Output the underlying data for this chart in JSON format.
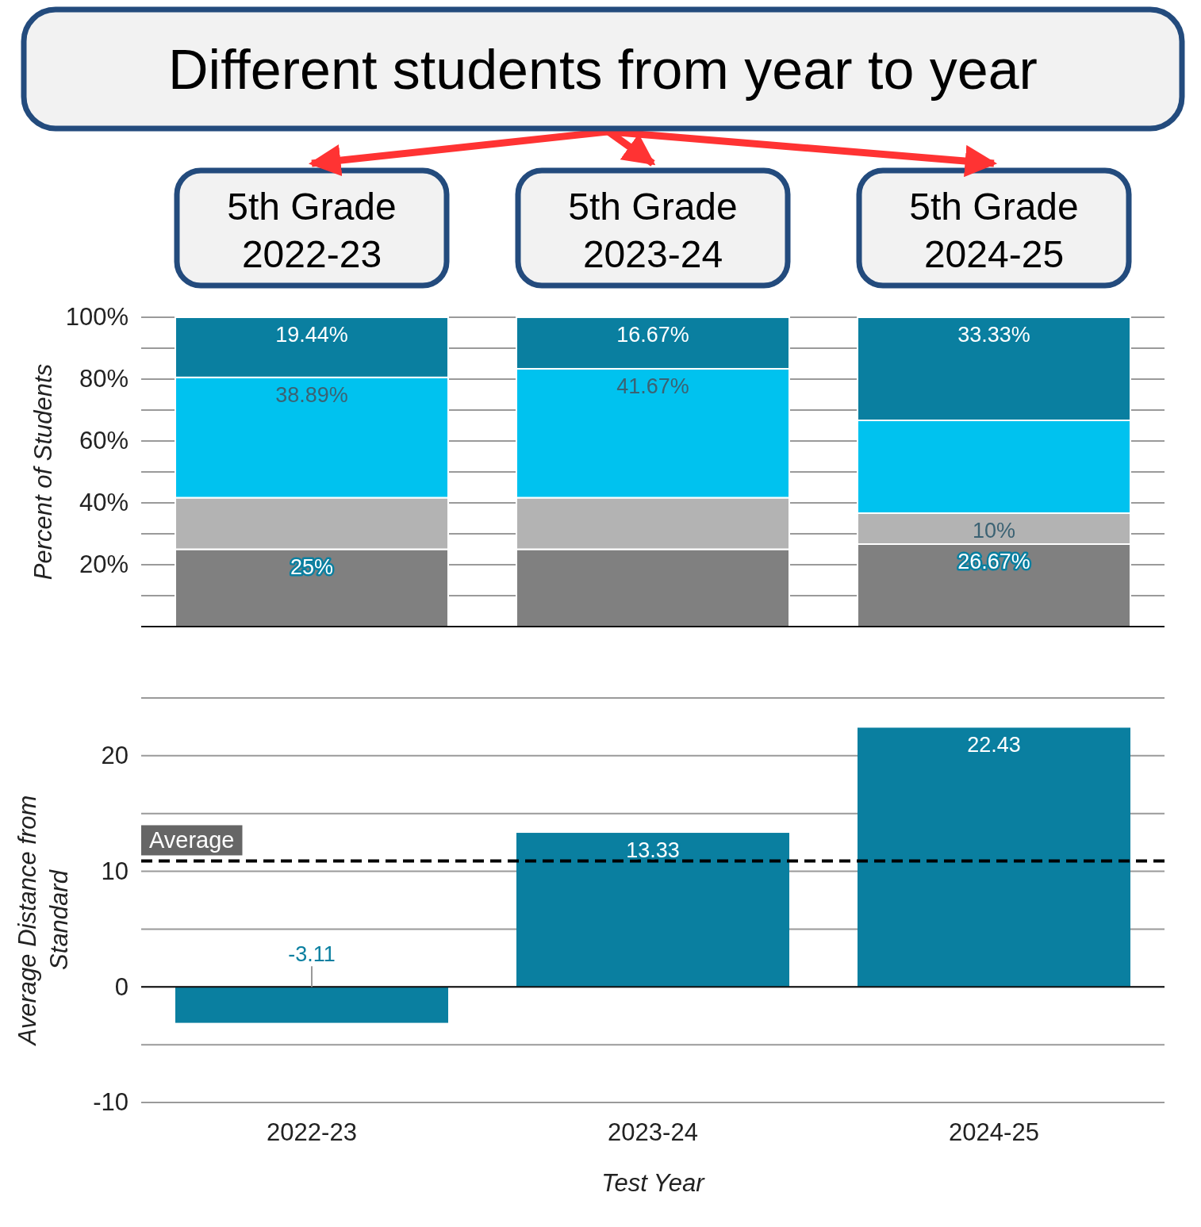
{
  "chart_data": [
    {
      "type": "bar",
      "stacked": true,
      "ylabel": "Percent of Students",
      "categories": [
        "2022-23",
        "2023-24",
        "2024-25"
      ],
      "series": [
        {
          "color": "#808080",
          "values": [
            25,
            25,
            26.67
          ],
          "value_labels": [
            "25%",
            null,
            "26.67%"
          ]
        },
        {
          "color": "#b3b3b3",
          "values": [
            16.67,
            16.67,
            10
          ],
          "value_labels": [
            null,
            null,
            "10%"
          ]
        },
        {
          "color": "#00c2ef",
          "values": [
            38.89,
            41.67,
            30
          ],
          "value_labels": [
            "38.89%",
            "41.67%",
            null
          ]
        },
        {
          "color": "#0a7fa0",
          "values": [
            19.44,
            16.67,
            33.33
          ],
          "value_labels": [
            "19.44%",
            "16.67%",
            "33.33%"
          ]
        }
      ],
      "ylim": [
        0,
        100
      ],
      "yticks": [
        {
          "value": 0,
          "label": null
        },
        {
          "value": 10,
          "label": null
        },
        {
          "value": 20,
          "label": "20%"
        },
        {
          "value": 30,
          "label": null
        },
        {
          "value": 40,
          "label": "40%"
        },
        {
          "value": 50,
          "label": null
        },
        {
          "value": 60,
          "label": "60%"
        },
        {
          "value": 70,
          "label": null
        },
        {
          "value": 80,
          "label": "80%"
        },
        {
          "value": 90,
          "label": null
        },
        {
          "value": 100,
          "label": "100%"
        }
      ],
      "grid": "y",
      "tick_labels": "y",
      "annotations": [
        "5th Grade\n2022-23",
        "5th Grade\n2023-24",
        "5th Grade\n2024-25",
        "Different students from year to year"
      ]
    },
    {
      "type": "bar",
      "xlabel": "Test Year",
      "ylabel": "Average Distance from\nStandard",
      "categories": [
        "2022-23",
        "2023-24",
        "2024-25"
      ],
      "values": [
        -3.11,
        13.33,
        22.43
      ],
      "color": "#0a7fa0",
      "data_labels": true,
      "ylim": [
        -10,
        25
      ],
      "yticks": [
        -10,
        {
          "value": -5,
          "label": null
        },
        0,
        {
          "value": 5,
          "label": null
        },
        10,
        {
          "value": 15,
          "label": null
        },
        20,
        {
          "value": 25,
          "label": null
        }
      ],
      "grid": "y",
      "ref_lines": [
        {
          "axis": "y",
          "value": 10.9,
          "label": "Average",
          "line_style": "dashed",
          "color": "#000000"
        }
      ]
    }
  ]
}
